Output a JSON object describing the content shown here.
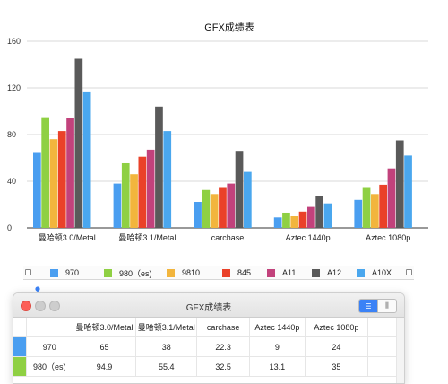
{
  "chart_data": {
    "type": "bar",
    "title": "GFX成绩表",
    "categories": [
      "曼哈顿3.0/Metal",
      "曼哈顿3.1/Metal",
      "carchase",
      "Aztec 1440p",
      "Aztec 1080p"
    ],
    "ylim": [
      0,
      160
    ],
    "yticks": [
      "0",
      "40",
      "80",
      "120",
      "160"
    ],
    "grid": true,
    "legend_position": "bottom",
    "series": [
      {
        "name": "970",
        "color": "#4a9ef0",
        "values": [
          65,
          38,
          22.3,
          9,
          24
        ]
      },
      {
        "name": "980（es)",
        "color": "#8fd043",
        "values": [
          94.9,
          55.4,
          32.5,
          13.1,
          35
        ]
      },
      {
        "name": "9810",
        "color": "#f2b53d",
        "values": [
          76,
          46,
          29,
          10,
          29
        ]
      },
      {
        "name": "845",
        "color": "#ea4129",
        "values": [
          83,
          61,
          35,
          14,
          37
        ]
      },
      {
        "name": "A11",
        "color": "#c2427c",
        "values": [
          94,
          67,
          38,
          18,
          51
        ]
      },
      {
        "name": "A12",
        "color": "#5a5a5a",
        "values": [
          145,
          104,
          66,
          27,
          75
        ]
      },
      {
        "name": "A10X",
        "color": "#4aa7ee",
        "values": [
          117,
          83,
          48,
          21,
          62
        ]
      }
    ]
  },
  "window": {
    "title": "GFX成绩表",
    "columns": [
      "",
      "曼哈顿3.0/Metal",
      "曼哈顿3.1/Metal",
      "carchase",
      "Aztec 1440p",
      "Aztec 1080p"
    ],
    "rows": [
      {
        "name": "970",
        "cells": [
          "65",
          "38",
          "22.3",
          "9",
          "24"
        ]
      },
      {
        "name": "980（es)",
        "cells": [
          "94.9",
          "55.4",
          "32.5",
          "13.1",
          "35"
        ]
      }
    ],
    "view_icons": [
      "list-view-icon",
      "column-view-icon"
    ]
  }
}
